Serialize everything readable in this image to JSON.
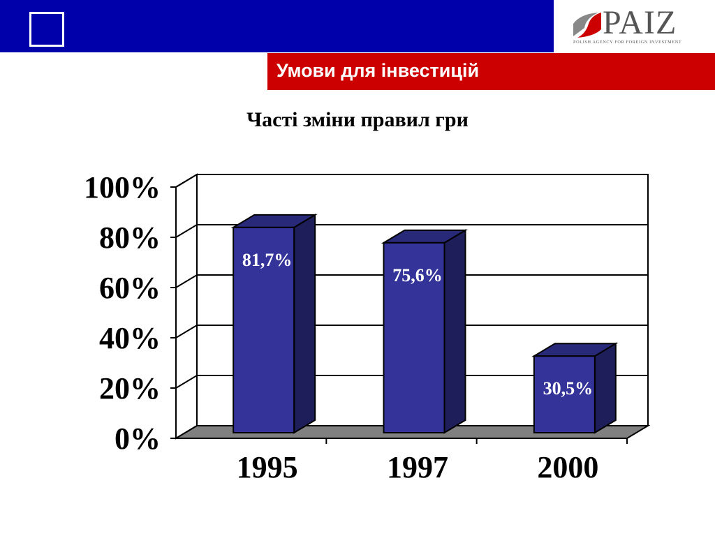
{
  "header": {
    "bar_color": "#0000AA",
    "icon": "square-outline-icon",
    "logo": {
      "text": "PAIZ",
      "subtitle": "POLISH AGENCY FOR FOREIGN INVESTMENT",
      "icon": "paiz-swoosh-icon"
    }
  },
  "section": {
    "title": "Умови для інвестицій",
    "color": "#CC0000"
  },
  "chart_data": {
    "type": "bar",
    "title": "Часті зміни правил гри",
    "categories": [
      "1995",
      "1997",
      "2000"
    ],
    "values": [
      81.7,
      75.6,
      30.5
    ],
    "data_labels": [
      "81,7%",
      "75,6%",
      "30,5%"
    ],
    "yticks": [
      "0%",
      "20%",
      "40%",
      "60%",
      "80%",
      "100%"
    ],
    "ylim": [
      0,
      100
    ],
    "xlabel": "",
    "ylabel": "",
    "grid": true,
    "legend": "none",
    "style": "3d",
    "bar_color": "#333399",
    "floor_color": "#808080"
  }
}
